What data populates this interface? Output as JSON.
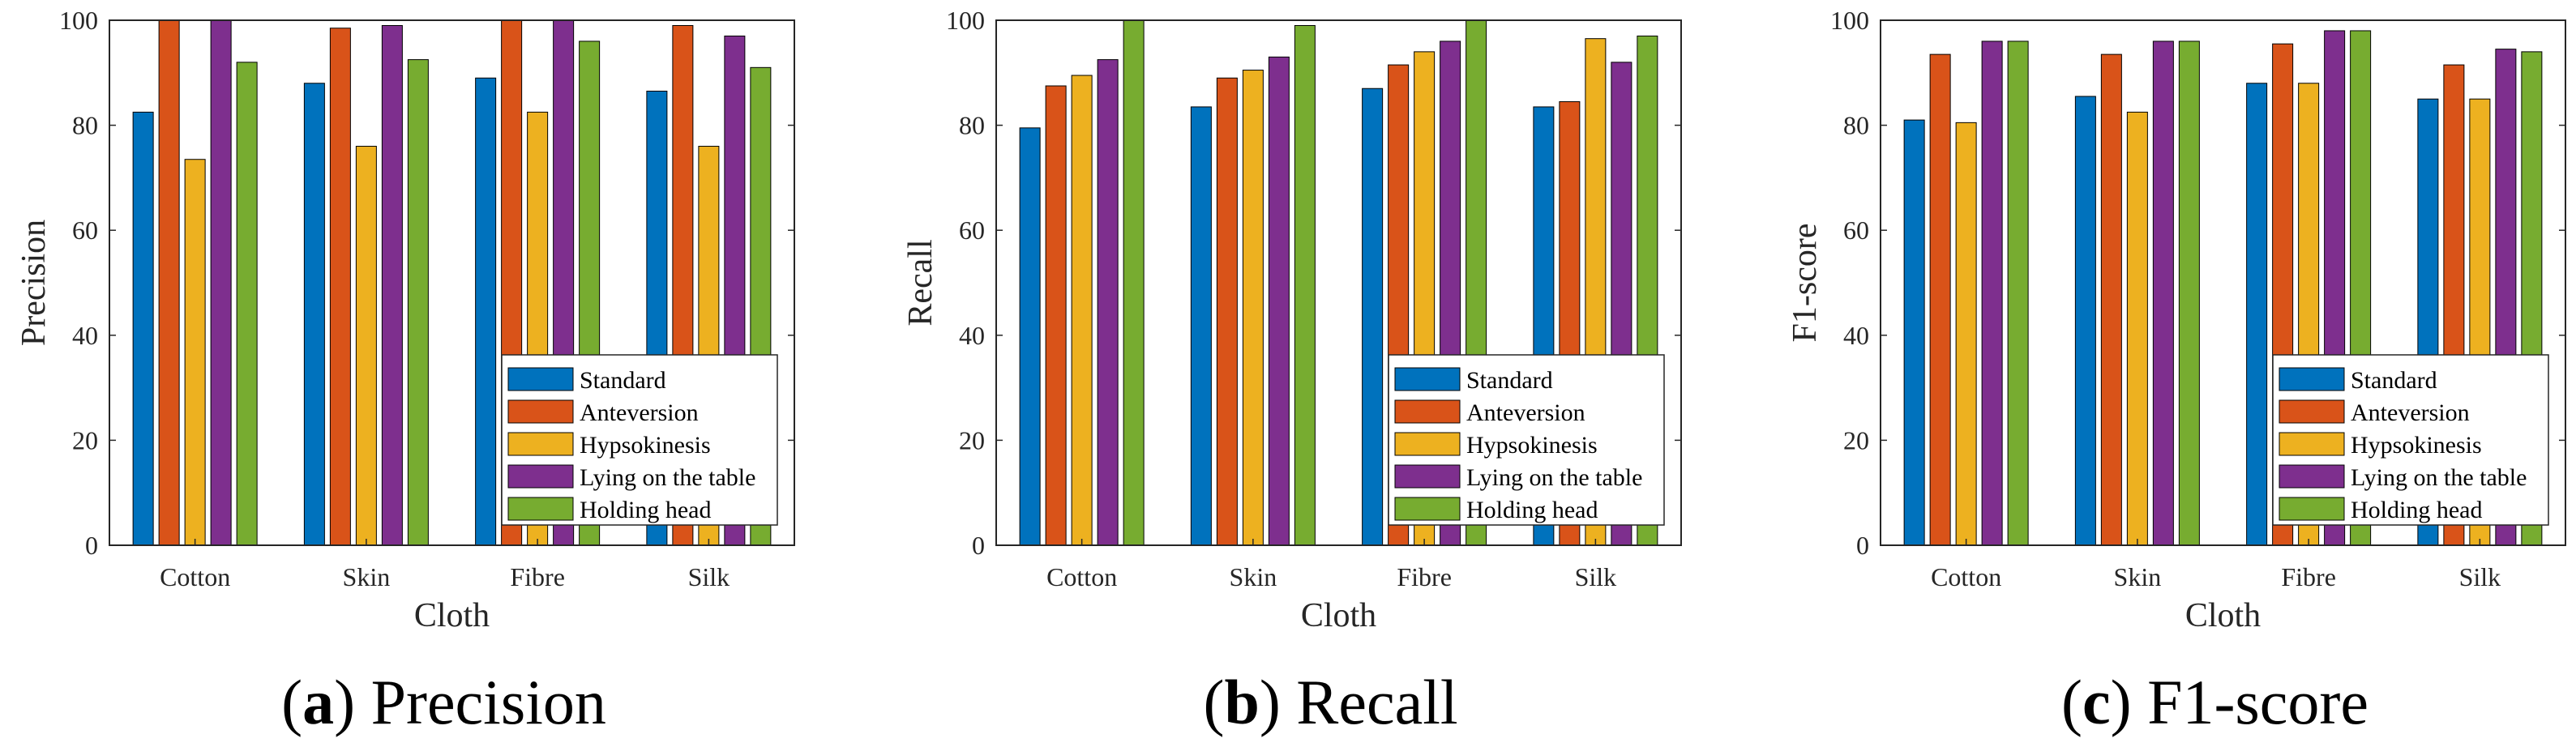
{
  "colors": [
    "#0072BD",
    "#D95319",
    "#EDB120",
    "#7E2F8E",
    "#77AC30"
  ],
  "chart_data": [
    {
      "type": "bar",
      "caption_letter": "a",
      "caption_text": "Precision",
      "xlabel": "Cloth",
      "ylabel": "Precision",
      "ylim": [
        0,
        100
      ],
      "yticks": [
        "0",
        "20",
        "40",
        "60",
        "80",
        "100"
      ],
      "categories": [
        "Cotton",
        "Skin",
        "Fibre",
        "Silk"
      ],
      "legend_position": "bottom-right",
      "series": [
        {
          "name": "Standard",
          "values": [
            82.5,
            88,
            89,
            86.5
          ]
        },
        {
          "name": "Anteversion",
          "values": [
            100,
            98.5,
            100,
            99
          ]
        },
        {
          "name": "Hypsokinesis",
          "values": [
            73.5,
            76,
            82.5,
            76
          ]
        },
        {
          "name": "Lying on the table",
          "values": [
            100,
            99,
            100,
            97
          ]
        },
        {
          "name": "Holding head",
          "values": [
            92,
            92.5,
            96,
            91
          ]
        }
      ]
    },
    {
      "type": "bar",
      "caption_letter": "b",
      "caption_text": "Recall",
      "xlabel": "Cloth",
      "ylabel": "Recall",
      "ylim": [
        0,
        100
      ],
      "yticks": [
        "0",
        "20",
        "40",
        "60",
        "80",
        "100"
      ],
      "categories": [
        "Cotton",
        "Skin",
        "Fibre",
        "Silk"
      ],
      "legend_position": "bottom-right",
      "series": [
        {
          "name": "Standard",
          "values": [
            79.5,
            83.5,
            87,
            83.5
          ]
        },
        {
          "name": "Anteversion",
          "values": [
            87.5,
            89,
            91.5,
            84.5
          ]
        },
        {
          "name": "Hypsokinesis",
          "values": [
            89.5,
            90.5,
            94,
            96.5
          ]
        },
        {
          "name": "Lying on the table",
          "values": [
            92.5,
            93,
            96,
            92
          ]
        },
        {
          "name": "Holding head",
          "values": [
            100,
            99,
            100,
            97
          ]
        }
      ]
    },
    {
      "type": "bar",
      "caption_letter": "c",
      "caption_text": "F1-score",
      "xlabel": "Cloth",
      "ylabel": "F1-score",
      "ylim": [
        0,
        100
      ],
      "yticks": [
        "0",
        "20",
        "40",
        "60",
        "80",
        "100"
      ],
      "categories": [
        "Cotton",
        "Skin",
        "Fibre",
        "Silk"
      ],
      "legend_position": "bottom-right",
      "series": [
        {
          "name": "Standard",
          "values": [
            81,
            85.5,
            88,
            85
          ]
        },
        {
          "name": "Anteversion",
          "values": [
            93.5,
            93.5,
            95.5,
            91.5
          ]
        },
        {
          "name": "Hypsokinesis",
          "values": [
            80.5,
            82.5,
            88,
            85
          ]
        },
        {
          "name": "Lying on the table",
          "values": [
            96,
            96,
            98,
            94.5
          ]
        },
        {
          "name": "Holding head",
          "values": [
            96,
            96,
            98,
            94
          ]
        }
      ]
    }
  ]
}
